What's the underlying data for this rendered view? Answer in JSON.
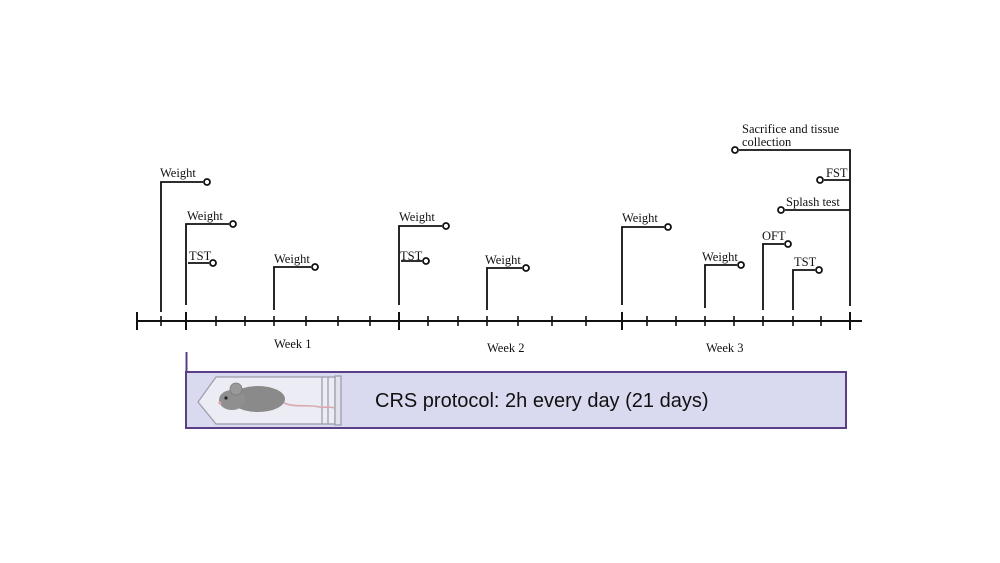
{
  "events": [
    {
      "label": "Weight"
    },
    {
      "label": "Weight"
    },
    {
      "label": "TST"
    },
    {
      "label": "Weight"
    },
    {
      "label": "Weight"
    },
    {
      "label": "TST"
    },
    {
      "label": "Weight"
    },
    {
      "label": "Weight"
    },
    {
      "label": "Weight"
    },
    {
      "label": "OFT"
    },
    {
      "label": "TST"
    },
    {
      "label": "Splash test"
    },
    {
      "label": "FST"
    },
    {
      "label": "Sacrifice and tissue",
      "label2": "collection"
    }
  ],
  "weeks": [
    "Week 1",
    "Week 2",
    "Week 3"
  ],
  "protocol": {
    "text": "CRS protocol: 2h every day (21 days)",
    "fill_color": "#d9d9ef",
    "border_color": "#5a3f86",
    "icon": "mouse-in-restraint-tube-icon"
  },
  "colors": {
    "line": "#111111"
  }
}
